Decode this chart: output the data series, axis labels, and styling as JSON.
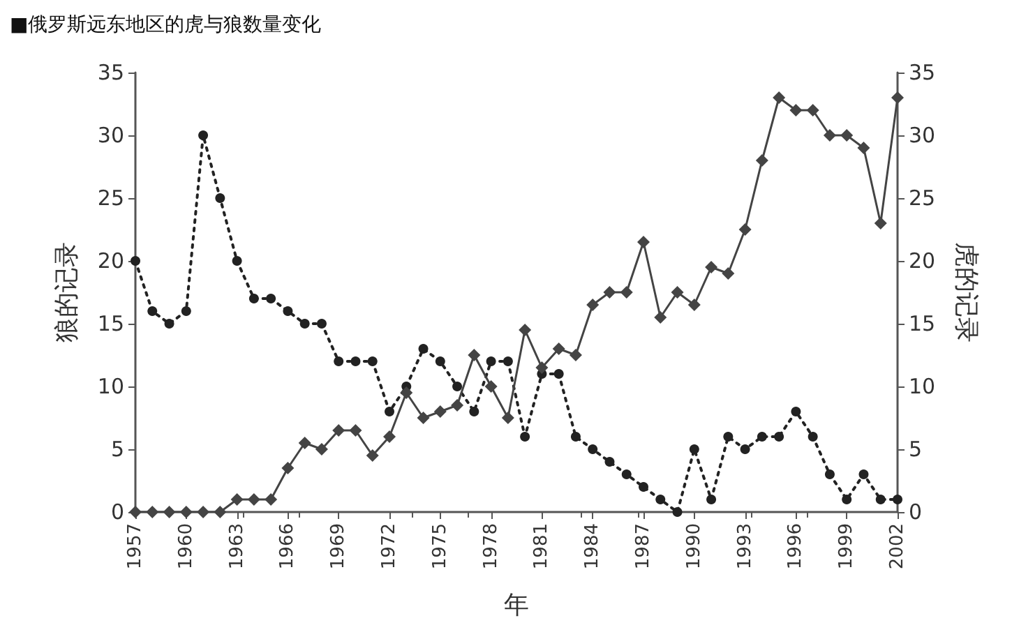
{
  "chart_data": {
    "type": "line",
    "title": "■俄罗斯远东地区的虎与狼数量变化",
    "xlabel": "年",
    "ylabel": "狼的记录",
    "y2label": "虎的记录",
    "x": [
      1957,
      1958,
      1959,
      1960,
      1961,
      1962,
      1963,
      1964,
      1965,
      1966,
      1967,
      1968,
      1969,
      1970,
      1971,
      1972,
      1973,
      1974,
      1975,
      1976,
      1977,
      1978,
      1979,
      1980,
      1981,
      1982,
      1983,
      1984,
      1985,
      1986,
      1987,
      1988,
      1989,
      1990,
      1991,
      1992,
      1993,
      1994,
      1995,
      1996,
      1997,
      1998,
      1999,
      2000,
      2001,
      2002
    ],
    "series": [
      {
        "color": "#222222",
        "marker": "circle",
        "line_style": "dotted",
        "values": [
          20,
          16,
          15,
          16,
          30,
          25,
          20,
          17,
          17,
          16,
          15,
          15,
          12,
          12,
          12,
          8,
          10,
          13,
          12,
          10,
          8,
          12,
          12,
          6,
          11,
          11,
          6,
          5,
          4,
          3,
          2,
          1,
          0,
          5,
          1,
          6,
          5,
          6,
          6,
          8,
          6,
          3,
          1,
          3,
          1,
          1
        ]
      },
      {
        "color": "#444444",
        "marker": "diamond",
        "line_style": "solid",
        "axis": "y2",
        "values": [
          0,
          0,
          0,
          0,
          0,
          0,
          1,
          1,
          1,
          3.5,
          5.5,
          5,
          6.5,
          6.5,
          4.5,
          6,
          9.5,
          7.5,
          8,
          8.5,
          12.5,
          10,
          7.5,
          14.5,
          11.5,
          13,
          12.5,
          16.5,
          17.5,
          17.5,
          21.5,
          15.5,
          17.5,
          16.5,
          19.5,
          19,
          22.5,
          28,
          33,
          32,
          32,
          30,
          30,
          29,
          23,
          33
        ]
      }
    ],
    "xlim": [
      1957,
      2002
    ],
    "xticks": [
      1957,
      1960,
      1963,
      1966,
      1969,
      1972,
      1975,
      1978,
      1981,
      1984,
      1987,
      1990,
      1993,
      1996,
      1999,
      2002
    ],
    "ylim": [
      0,
      35
    ],
    "yticks": [
      0,
      5,
      10,
      15,
      20,
      25,
      30,
      35
    ],
    "y2lim": [
      0,
      35
    ],
    "y2ticks": [
      0,
      5,
      10,
      15,
      20,
      25,
      30,
      35
    ],
    "grid": false
  }
}
